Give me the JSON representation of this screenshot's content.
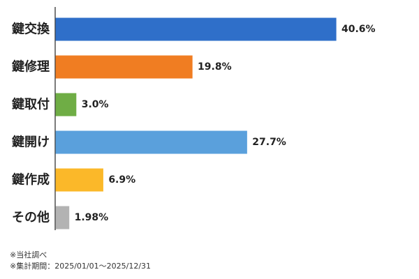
{
  "chart_data": {
    "type": "bar",
    "orientation": "horizontal",
    "categories": [
      "鍵交換",
      "鍵修理",
      "鍵取付",
      "鍵開け",
      "鍵作成",
      "その他"
    ],
    "values": [
      40.6,
      19.8,
      3.0,
      27.7,
      6.9,
      1.98
    ],
    "value_labels": [
      "40.6%",
      "19.8%",
      "3.0%",
      "27.7%",
      "6.9%",
      "1.98%"
    ],
    "colors": [
      "#2f6fc9",
      "#f07d22",
      "#6fad45",
      "#5aa0dc",
      "#fbb829",
      "#b3b3b3"
    ],
    "unit": "%",
    "xlim": [
      0,
      50
    ],
    "grid": false,
    "title": "",
    "xlabel": "",
    "ylabel": ""
  },
  "notes": [
    "※当社調べ",
    "※集計期間：2025/01/01～2025/12/31"
  ]
}
